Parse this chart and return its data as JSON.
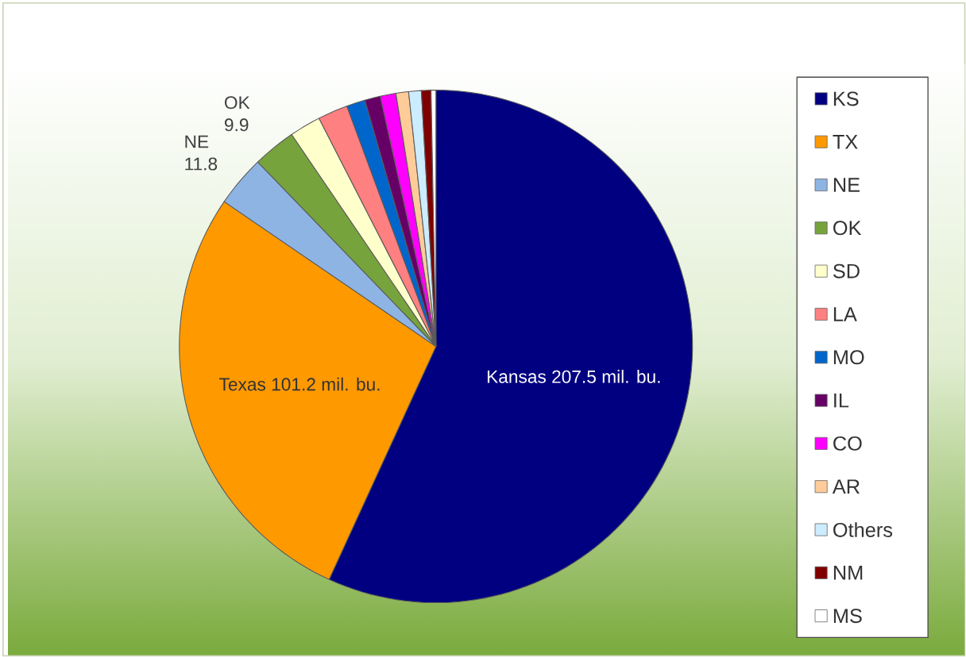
{
  "chart_data": {
    "type": "pie",
    "categories": [
      "KS",
      "TX",
      "NE",
      "OK",
      "SD",
      "LA",
      "MO",
      "IL",
      "CO",
      "AR",
      "Others",
      "NM",
      "MS"
    ],
    "values": [
      207.5,
      101.2,
      11.8,
      9.9,
      7.2,
      6.9,
      4.3,
      3.6,
      3.6,
      2.9,
      2.9,
      2.2,
      1.1
    ],
    "colors": [
      "#000080",
      "#ff9900",
      "#8eb4e3",
      "#77a33c",
      "#ffffcc",
      "#ff8080",
      "#0066cc",
      "#660066",
      "#ff00ff",
      "#ffcc99",
      "#ccecff",
      "#800000",
      "#ffffff"
    ],
    "value_labels": [
      "Kansas 207.5 mil. bu.",
      "Texas 101.2 mil. bu.",
      "NE 11.8",
      "OK 9.9",
      null,
      null,
      null,
      null,
      null,
      null,
      null,
      null,
      null
    ],
    "legend": "right"
  }
}
